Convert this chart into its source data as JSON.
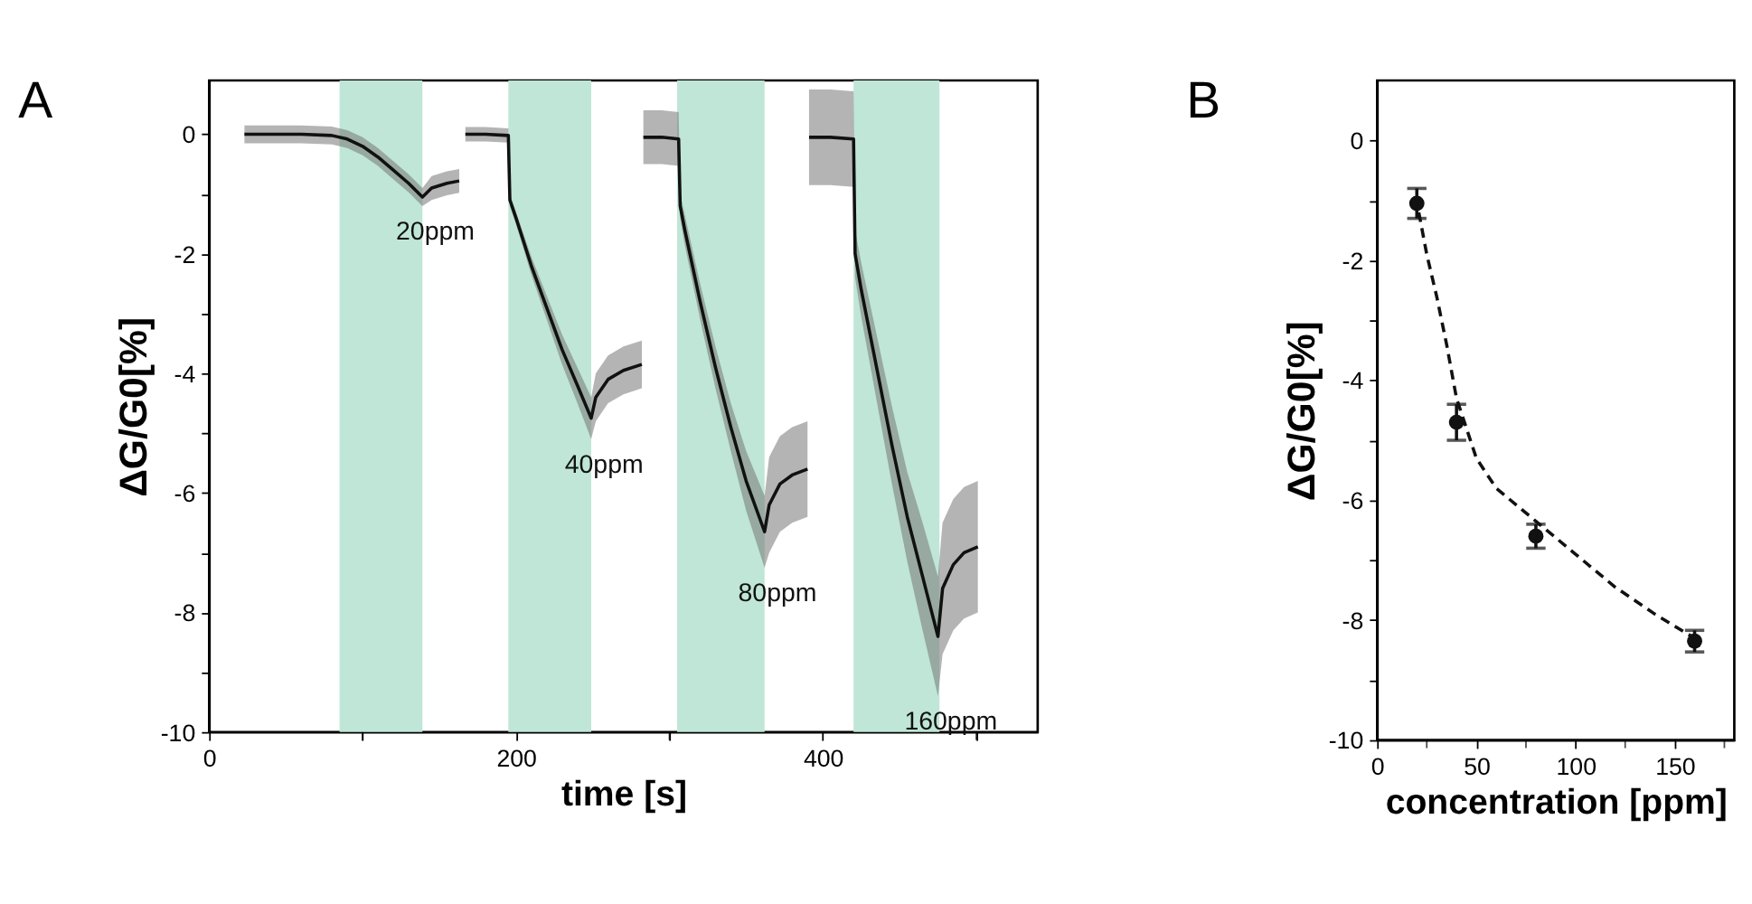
{
  "chart_data": [
    {
      "type": "line",
      "title": "A",
      "xlabel": "time [s]",
      "ylabel": "ΔG/G0[%]",
      "xlim": [
        0,
        540
      ],
      "ylim": [
        -10,
        0.9
      ],
      "xticks": [
        0,
        {
          "value": 100,
          "label": null
        },
        200,
        {
          "value": 300,
          "label": null
        },
        400,
        {
          "value": 500,
          "label": null
        }
      ],
      "yticks": [
        -10,
        {
          "value": -9,
          "label": null
        },
        -8,
        {
          "value": -7,
          "label": null
        },
        -6,
        {
          "value": -5,
          "label": null
        },
        -4,
        {
          "value": -3,
          "label": null
        },
        -2,
        {
          "value": -1,
          "label": null
        },
        0
      ],
      "grid": false,
      "marker": "none",
      "line_style": "solid",
      "series": [
        {
          "color": "#111111",
          "x": [
            23,
            40,
            60,
            80,
            90,
            100,
            110,
            120,
            130,
            139,
            145,
            155,
            163
          ],
          "values": [
            0,
            0,
            0,
            -0.02,
            -0.08,
            -0.2,
            -0.38,
            -0.6,
            -0.82,
            -1.05,
            -0.9,
            -0.82,
            -0.78
          ],
          "lower": [
            -0.15,
            -0.15,
            -0.15,
            -0.17,
            -0.23,
            -0.35,
            -0.53,
            -0.75,
            -0.97,
            -1.2,
            -1.1,
            -1.02,
            -0.98
          ],
          "upper": [
            0.15,
            0.15,
            0.15,
            0.13,
            0.07,
            -0.05,
            -0.23,
            -0.45,
            -0.67,
            -0.9,
            -0.7,
            -0.62,
            -0.58
          ]
        },
        {
          "color": "#111111",
          "x": [
            167,
            180,
            195,
            196,
            200,
            210,
            220,
            230,
            240,
            249,
            252,
            260,
            270,
            282
          ],
          "values": [
            0,
            0,
            -0.02,
            -1.1,
            -1.4,
            -2.2,
            -2.9,
            -3.6,
            -4.2,
            -4.75,
            -4.4,
            -4.1,
            -3.95,
            -3.85
          ],
          "lower": [
            -0.12,
            -0.12,
            -0.14,
            -1.2,
            -1.5,
            -2.35,
            -3.1,
            -3.85,
            -4.5,
            -5.1,
            -4.8,
            -4.5,
            -4.35,
            -4.25
          ],
          "upper": [
            0.12,
            0.12,
            0.1,
            -1.0,
            -1.3,
            -2.05,
            -2.7,
            -3.35,
            -3.9,
            -4.4,
            -4.0,
            -3.7,
            -3.55,
            -3.45
          ]
        },
        {
          "color": "#111111",
          "x": [
            283,
            295,
            306,
            307,
            310,
            320,
            330,
            340,
            350,
            362,
            365,
            372,
            380,
            390
          ],
          "values": [
            -0.05,
            -0.05,
            -0.08,
            -1.2,
            -1.6,
            -2.8,
            -3.9,
            -4.9,
            -5.8,
            -6.65,
            -6.2,
            -5.85,
            -5.7,
            -5.6
          ],
          "lower": [
            -0.5,
            -0.5,
            -0.53,
            -1.4,
            -1.85,
            -3.1,
            -4.25,
            -5.3,
            -6.3,
            -7.25,
            -7.0,
            -6.65,
            -6.5,
            -6.4
          ],
          "upper": [
            0.4,
            0.4,
            0.37,
            -1.0,
            -1.35,
            -2.5,
            -3.55,
            -4.5,
            -5.3,
            -6.05,
            -5.4,
            -5.05,
            -4.9,
            -4.8
          ]
        },
        {
          "color": "#111111",
          "x": [
            391,
            405,
            420,
            421,
            425,
            435,
            445,
            455,
            465,
            475,
            478,
            485,
            492,
            501
          ],
          "values": [
            -0.05,
            -0.05,
            -0.08,
            -2.0,
            -2.6,
            -3.9,
            -5.2,
            -6.4,
            -7.4,
            -8.4,
            -7.6,
            -7.2,
            -7.0,
            -6.9
          ],
          "lower": [
            -0.85,
            -0.85,
            -0.88,
            -2.4,
            -3.05,
            -4.45,
            -5.85,
            -7.15,
            -8.3,
            -9.4,
            -8.7,
            -8.3,
            -8.1,
            -8.0
          ],
          "upper": [
            0.75,
            0.75,
            0.72,
            -1.6,
            -2.15,
            -3.35,
            -4.55,
            -5.65,
            -6.5,
            -7.4,
            -6.5,
            -6.1,
            -5.9,
            -5.8
          ]
        }
      ],
      "bands": [
        {
          "axis": "x",
          "from": 85,
          "to": 139,
          "color": "#bfe6d6"
        },
        {
          "axis": "x",
          "from": 195,
          "to": 249,
          "color": "#bfe6d6"
        },
        {
          "axis": "x",
          "from": 305,
          "to": 362,
          "color": "#bfe6d6"
        },
        {
          "axis": "x",
          "from": 420,
          "to": 476,
          "color": "#bfe6d6"
        }
      ],
      "annotations": [
        "20ppm",
        "40ppm",
        "80ppm",
        "160ppm"
      ]
    },
    {
      "type": "scatter",
      "title": "B",
      "xlabel": "concentration [ppm]",
      "ylabel": "ΔG/G0[%]",
      "xlim": [
        0,
        180
      ],
      "ylim": [
        -10,
        1
      ],
      "xticks": [
        0,
        {
          "value": 25,
          "label": null
        },
        50,
        {
          "value": 75,
          "label": null
        },
        100,
        {
          "value": 125,
          "label": null
        },
        150,
        {
          "value": 175,
          "label": null
        }
      ],
      "yticks": [
        -10,
        {
          "value": -9,
          "label": null
        },
        -8,
        {
          "value": -7,
          "label": null
        },
        -6,
        {
          "value": -5,
          "label": null
        },
        -4,
        {
          "value": -3,
          "label": null
        },
        -2,
        {
          "value": -1,
          "label": null
        },
        0
      ],
      "grid": false,
      "series": [
        {
          "type": "scatter",
          "color": "#111111",
          "marker": "circle",
          "x": [
            20,
            40,
            80,
            160
          ],
          "values": [
            -1.05,
            -4.7,
            -6.6,
            -8.35
          ],
          "errors": [
            0.25,
            0.3,
            0.2,
            0.18
          ]
        },
        {
          "type": "line",
          "color": "#111111",
          "marker": "none",
          "line_style": "dashed",
          "x": [
            21,
            25,
            30,
            35,
            40,
            50,
            60,
            80,
            100,
            120,
            140,
            160
          ],
          "values": [
            -1.2,
            -1.9,
            -2.6,
            -3.4,
            -4.3,
            -5.3,
            -5.8,
            -6.35,
            -6.9,
            -7.45,
            -7.9,
            -8.3
          ]
        }
      ]
    }
  ]
}
